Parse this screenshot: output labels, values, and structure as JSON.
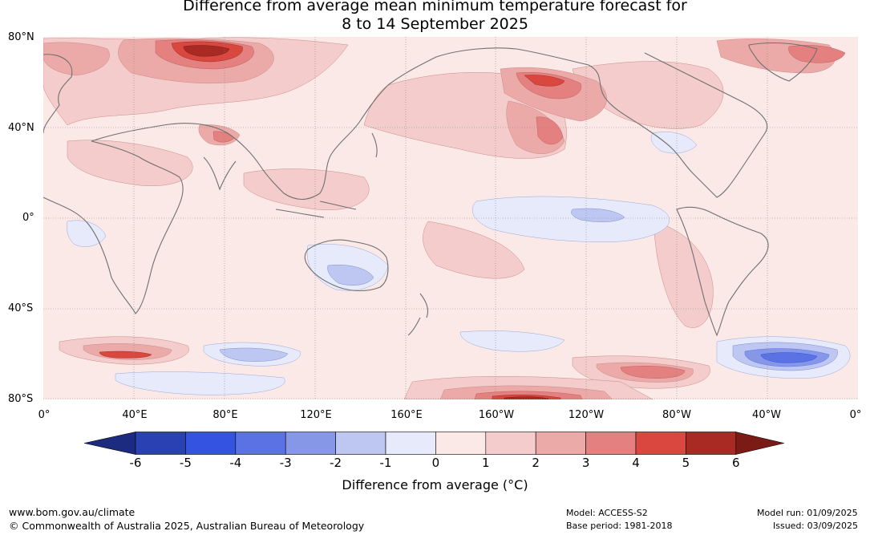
{
  "title": {
    "line1": "Difference from average mean minimum temperature forecast for",
    "line2": "8 to 14 September 2025"
  },
  "map": {
    "lat_labels": [
      "80°N",
      "40°N",
      "0°",
      "40°S",
      "80°S"
    ],
    "lon_labels": [
      "0°",
      "40°E",
      "80°E",
      "120°E",
      "160°E",
      "160°W",
      "120°W",
      "80°W",
      "40°W",
      "0°"
    ],
    "colors": {
      "land_outline": "#707070",
      "grid": "#8a8a8a",
      "background": "#fbe9e7"
    },
    "anomaly_regions": [
      {
        "name": "Northern Asia",
        "level": 2
      },
      {
        "name": "Central Siberia",
        "level": 5
      },
      {
        "name": "Western Russia / Europe",
        "level": 2
      },
      {
        "name": "Alaska",
        "level": 3
      },
      {
        "name": "North Pacific",
        "level": 2
      },
      {
        "name": "Canada",
        "level": 2
      },
      {
        "name": "Greenland",
        "level": 3
      },
      {
        "name": "Tibetan Plateau",
        "level": 3
      },
      {
        "name": "Southern Ocean near 40°E",
        "level": 3
      },
      {
        "name": "Antarctic coast 140°W–160°W",
        "level": 5
      },
      {
        "name": "Southern Ocean near 100°W",
        "level": 4
      },
      {
        "name": "South Atlantic near 40°W",
        "level": -3
      },
      {
        "name": "Southern Ocean near 120°E",
        "level": -2
      },
      {
        "name": "Australia",
        "level": -1
      },
      {
        "name": "Equatorial east Pacific",
        "level": -1
      },
      {
        "name": "South America west coast",
        "level": 2
      }
    ]
  },
  "colorbar": {
    "colors": [
      "#1c2b80",
      "#2941b3",
      "#3353e0",
      "#5a72e3",
      "#8797e8",
      "#bdc7f2",
      "#e6eafa",
      "#fbe9e7",
      "#f3cccb",
      "#ebaaa8",
      "#e48180",
      "#d9473f",
      "#a82a23",
      "#7a1c15"
    ],
    "ticks": [
      "-6",
      "-5",
      "-4",
      "-3",
      "-2",
      "-1",
      "0",
      "1",
      "2",
      "3",
      "4",
      "5",
      "6"
    ],
    "label": "Difference from average (°C)"
  },
  "footer": {
    "url": "www.bom.gov.au/climate",
    "copyright": "© Commonwealth of Australia 2025, Australian Bureau of Meteorology",
    "model": "Model: ACCESS-S2",
    "base_period": "Base period: 1981-2018",
    "model_run": "Model run: 01/09/2025",
    "issued": "Issued: 03/09/2025"
  }
}
